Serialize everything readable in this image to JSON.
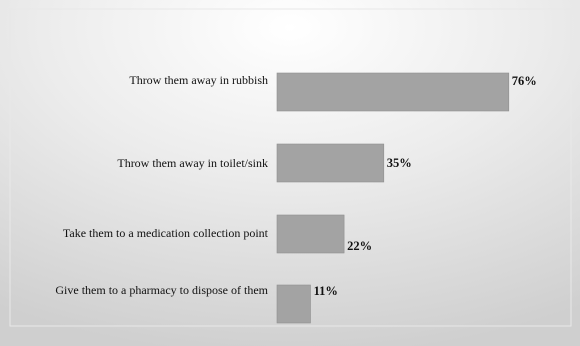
{
  "chart_data": {
    "type": "bar",
    "orientation": "horizontal",
    "title": "",
    "xlabel": "",
    "ylabel": "",
    "categories": [
      "Throw them away in rubbish",
      "Throw them away in toilet/sink",
      "Take them to a medication collection point",
      "Give them to a pharmacy to dispose of them"
    ],
    "values": [
      76,
      35,
      22,
      11
    ],
    "value_labels": [
      "76%",
      "35%",
      "22%",
      "11%"
    ],
    "xlim": [
      0,
      100
    ],
    "grid": false,
    "legend": "none",
    "colors": {
      "bar": "#a3a3a3",
      "bar_border": "#8f8f8f",
      "background_center": "#ffffff",
      "background_edge": "#cfcfcf",
      "frame": "#e8e8e8",
      "text": "#111111"
    }
  }
}
